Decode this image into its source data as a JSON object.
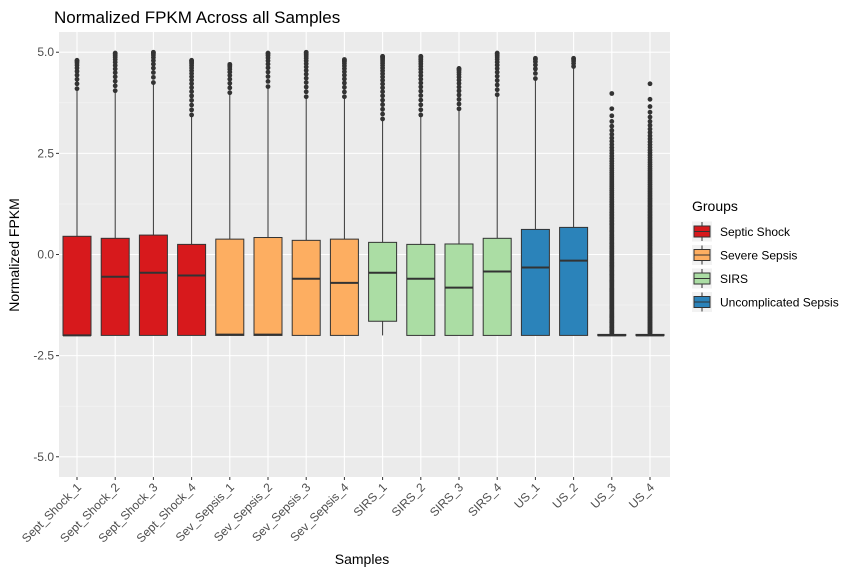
{
  "chart_data": {
    "type": "boxplot",
    "title": "Normalized FPKM Across all Samples",
    "xlabel": "Samples",
    "ylabel": "Normalized FPKM",
    "ylim": [
      -5.5,
      5.5
    ],
    "yticks": [
      5.0,
      2.5,
      0.0,
      -2.5,
      -5.0
    ],
    "ytick_labels": [
      "5.0",
      "2.5",
      "0.0",
      "-2.5",
      "-5.0"
    ],
    "grid": true,
    "legend": {
      "title": "Groups",
      "placement": "right",
      "entries": [
        {
          "name": "Septic Shock",
          "color": "#d7191c"
        },
        {
          "name": "Severe Sepsis",
          "color": "#fdae61"
        },
        {
          "name": "SIRS",
          "color": "#abdda4"
        },
        {
          "name": "Uncomplicated Sepsis",
          "color": "#2b83ba"
        }
      ]
    },
    "samples": [
      {
        "label": "Sept_Shock_1",
        "group": "Septic Shock",
        "min": -2.0,
        "q1": -2.0,
        "median": -2.0,
        "q3": 0.45,
        "whisker_high": 4.1,
        "outliers_max": 4.8
      },
      {
        "label": "Sept_Shock_2",
        "group": "Septic Shock",
        "min": -2.0,
        "q1": -2.0,
        "median": -0.55,
        "q3": 0.4,
        "whisker_high": 4.05,
        "outliers_max": 4.98
      },
      {
        "label": "Sept_Shock_3",
        "group": "Septic Shock",
        "min": -2.0,
        "q1": -2.0,
        "median": -0.45,
        "q3": 0.48,
        "whisker_high": 4.25,
        "outliers_max": 5.0
      },
      {
        "label": "Sept_Shock_4",
        "group": "Septic Shock",
        "min": -2.0,
        "q1": -2.0,
        "median": -0.52,
        "q3": 0.25,
        "whisker_high": 3.45,
        "outliers_max": 4.8
      },
      {
        "label": "Sev_Sepsis_1",
        "group": "Severe Sepsis",
        "min": -2.0,
        "q1": -2.0,
        "median": -1.98,
        "q3": 0.38,
        "whisker_high": 4.0,
        "outliers_max": 4.7
      },
      {
        "label": "Sev_Sepsis_2",
        "group": "Severe Sepsis",
        "min": -2.0,
        "q1": -2.0,
        "median": -1.98,
        "q3": 0.42,
        "whisker_high": 4.15,
        "outliers_max": 4.98
      },
      {
        "label": "Sev_Sepsis_3",
        "group": "Severe Sepsis",
        "min": -2.0,
        "q1": -2.0,
        "median": -0.6,
        "q3": 0.35,
        "whisker_high": 3.9,
        "outliers_max": 5.0
      },
      {
        "label": "Sev_Sepsis_4",
        "group": "Severe Sepsis",
        "min": -2.0,
        "q1": -2.0,
        "median": -0.7,
        "q3": 0.38,
        "whisker_high": 3.9,
        "outliers_max": 4.82
      },
      {
        "label": "SIRS_1",
        "group": "SIRS",
        "min": -2.0,
        "q1": -1.65,
        "median": -0.45,
        "q3": 0.3,
        "whisker_high": 3.35,
        "outliers_max": 4.9
      },
      {
        "label": "SIRS_2",
        "group": "SIRS",
        "min": -2.0,
        "q1": -2.0,
        "median": -0.6,
        "q3": 0.25,
        "whisker_high": 3.45,
        "outliers_max": 4.9
      },
      {
        "label": "SIRS_3",
        "group": "SIRS",
        "min": -2.0,
        "q1": -2.0,
        "median": -0.82,
        "q3": 0.26,
        "whisker_high": 3.6,
        "outliers_max": 4.6
      },
      {
        "label": "SIRS_4",
        "group": "SIRS",
        "min": -2.0,
        "q1": -2.0,
        "median": -0.42,
        "q3": 0.4,
        "whisker_high": 3.95,
        "outliers_max": 4.98
      },
      {
        "label": "US_1",
        "group": "Uncomplicated Sepsis",
        "min": -2.0,
        "q1": -2.0,
        "median": -0.32,
        "q3": 0.62,
        "whisker_high": 4.35,
        "outliers_max": 4.85
      },
      {
        "label": "US_2",
        "group": "Uncomplicated Sepsis",
        "min": -2.0,
        "q1": -2.0,
        "median": -0.15,
        "q3": 0.67,
        "whisker_high": 4.65,
        "outliers_max": 4.85
      },
      {
        "label": "US_3",
        "group": "Uncomplicated Sepsis",
        "min": -2.0,
        "q1": -2.0,
        "median": -2.0,
        "q3": -1.98,
        "whisker_high": -1.95,
        "outliers_max": 3.98
      },
      {
        "label": "US_4",
        "group": "Uncomplicated Sepsis",
        "min": -2.0,
        "q1": -2.0,
        "median": -2.0,
        "q3": -1.98,
        "whisker_high": -1.95,
        "outliers_max": 4.22
      }
    ]
  }
}
